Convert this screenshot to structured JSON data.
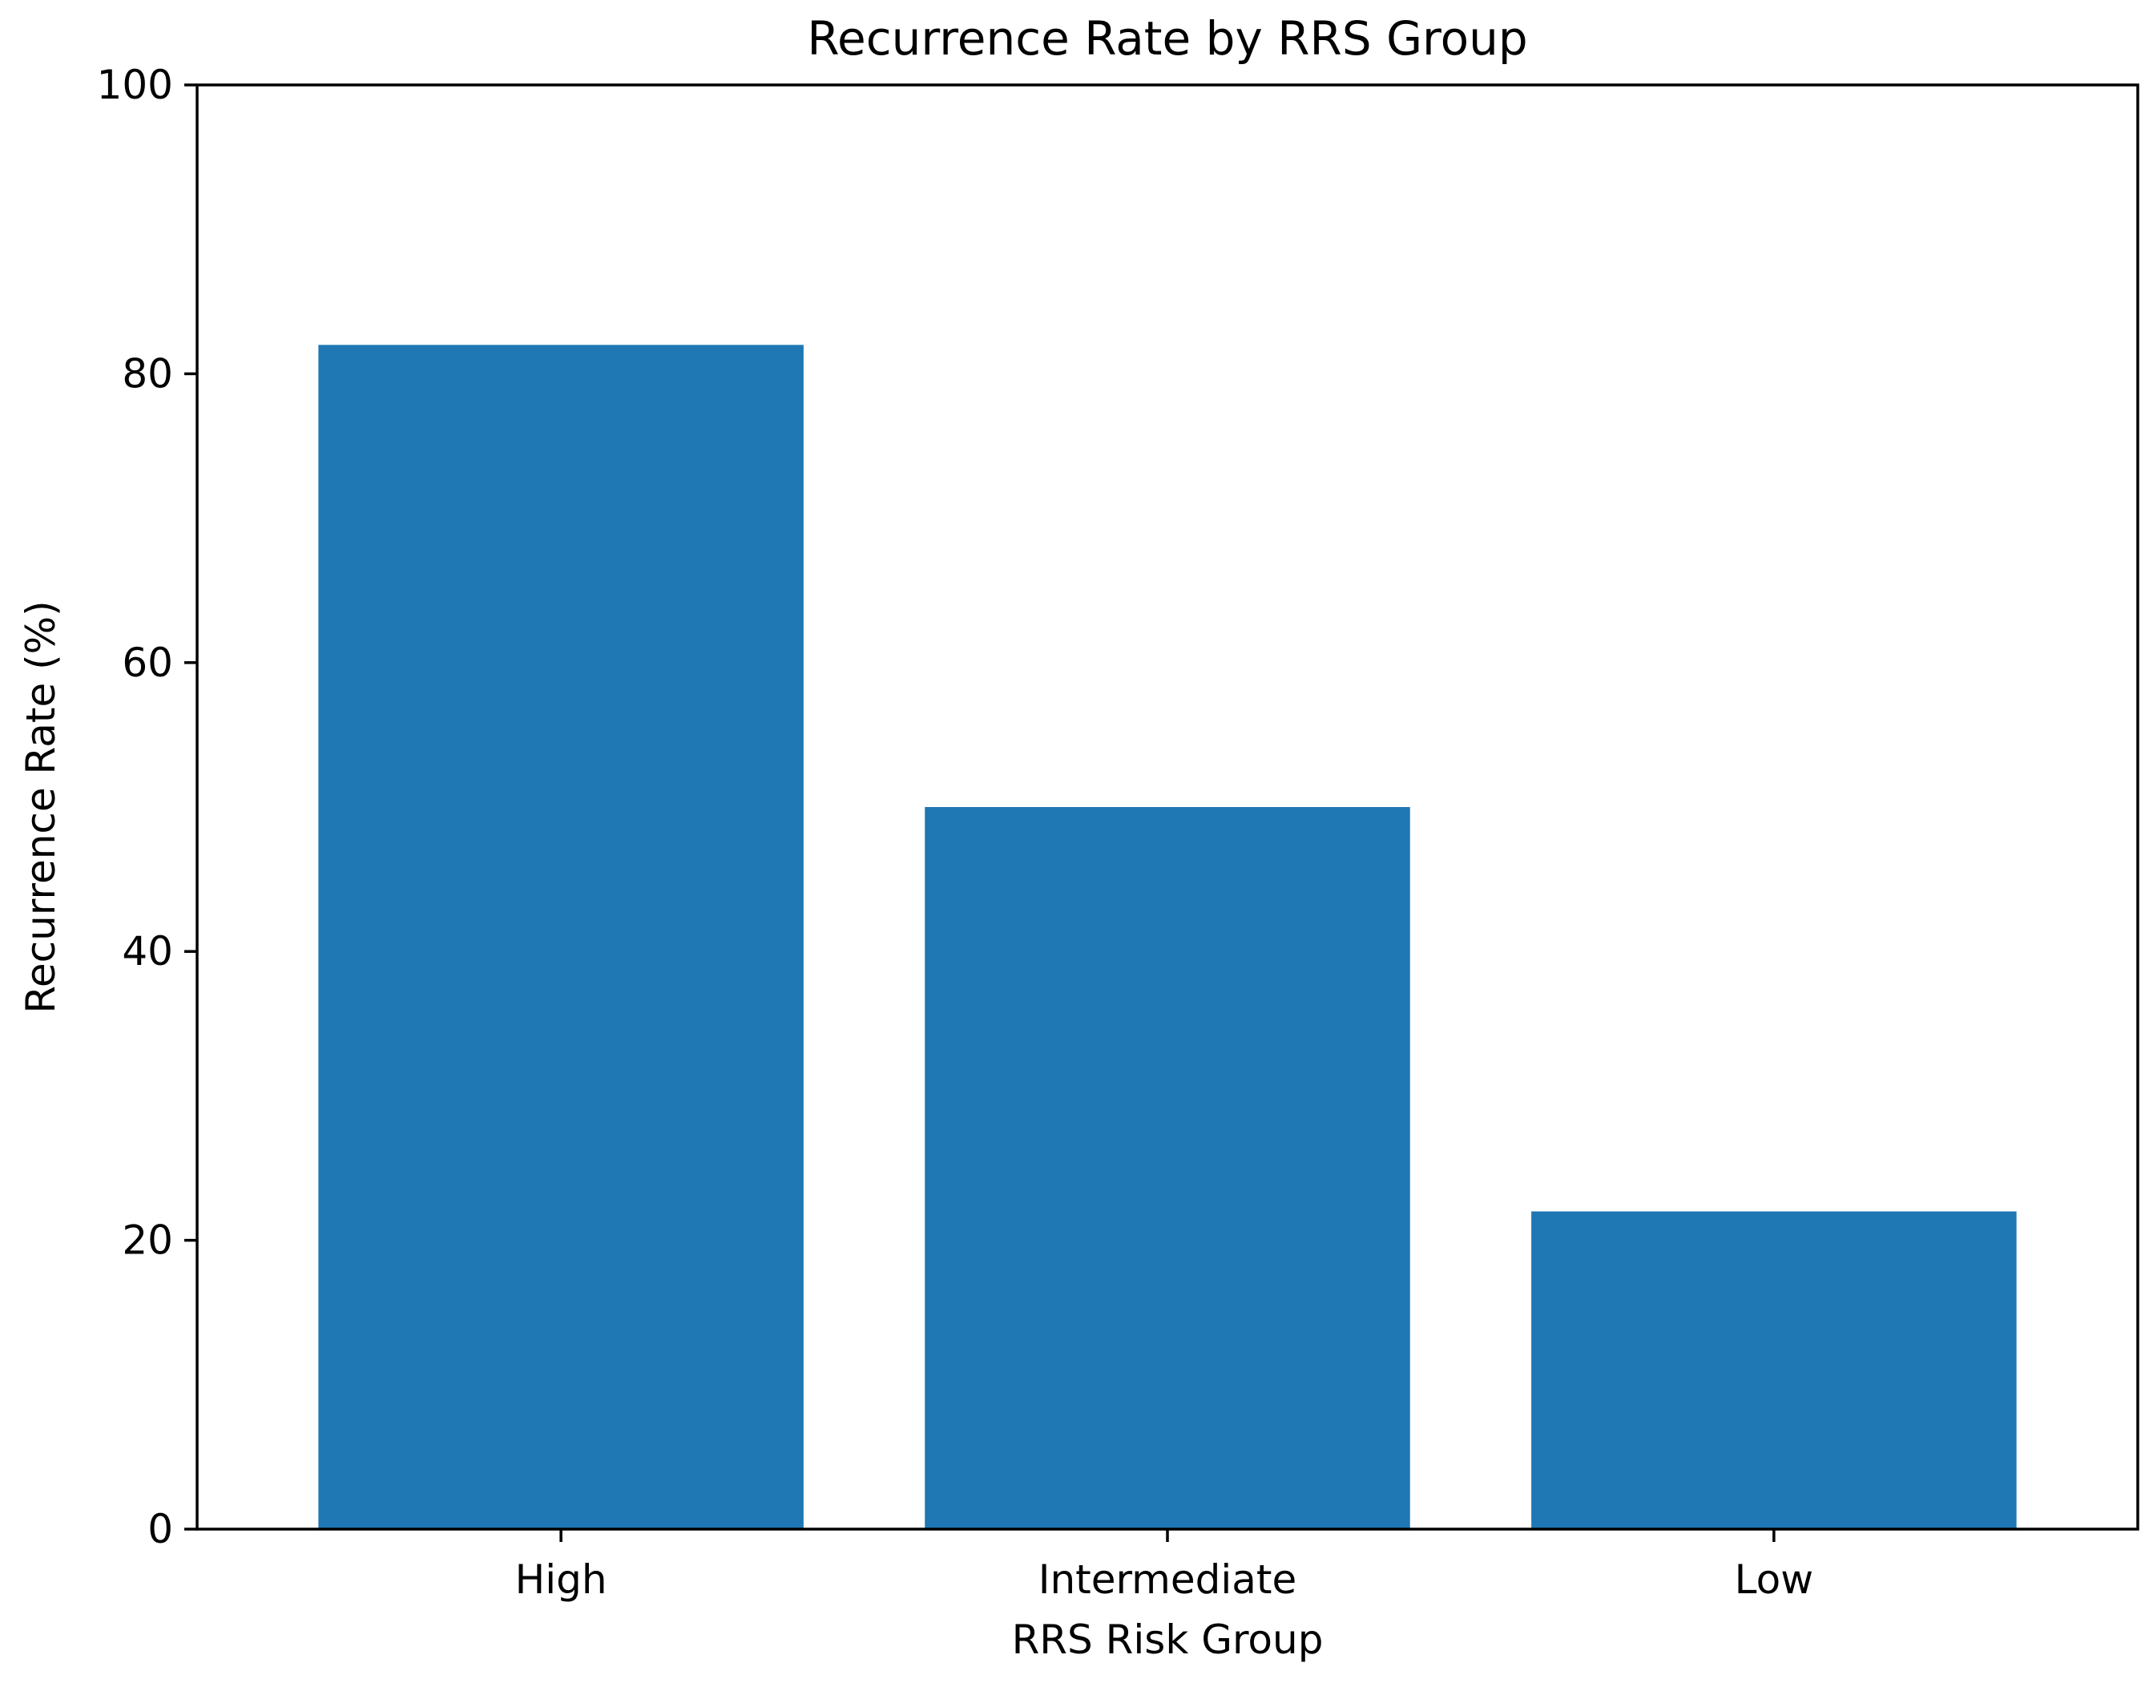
{
  "chart_data": {
    "type": "bar",
    "title": "Recurrence Rate by RRS Group",
    "xlabel": "RRS Risk Group",
    "ylabel": "Recurrence Rate (%)",
    "categories": [
      "High",
      "Intermediate",
      "Low"
    ],
    "values": [
      82,
      50,
      22
    ],
    "ylim": [
      0,
      100
    ],
    "yticks": [
      0,
      20,
      40,
      60,
      80,
      100
    ],
    "grid": false,
    "legend": "none",
    "colors": {
      "bar": "#1f77b4",
      "axis": "#000000",
      "background": "#ffffff"
    }
  }
}
